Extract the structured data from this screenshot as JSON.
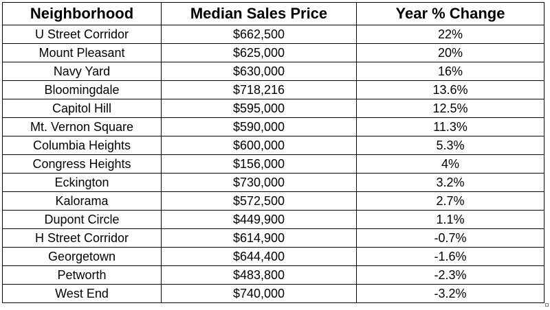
{
  "table": {
    "headers": [
      "Neighborhood",
      "Median Sales Price",
      "Year % Change"
    ],
    "rows": [
      [
        "U Street Corridor",
        "$662,500",
        "22%"
      ],
      [
        "Mount Pleasant",
        "$625,000",
        "20%"
      ],
      [
        "Navy Yard",
        "$630,000",
        "16%"
      ],
      [
        "Bloomingdale",
        "$718,216",
        "13.6%"
      ],
      [
        "Capitol Hill",
        "$595,000",
        "12.5%"
      ],
      [
        "Mt. Vernon Square",
        "$590,000",
        "11.3%"
      ],
      [
        "Columbia Heights",
        "$600,000",
        "5.3%"
      ],
      [
        "Congress Heights",
        "$156,000",
        "4%"
      ],
      [
        "Eckington",
        "$730,000",
        "3.2%"
      ],
      [
        "Kalorama",
        "$572,500",
        "2.7%"
      ],
      [
        "Dupont Circle",
        "$449,900",
        "1.1%"
      ],
      [
        "H Street Corridor",
        "$614,900",
        "-0.7%"
      ],
      [
        "Georgetown",
        "$644,400",
        "-1.6%"
      ],
      [
        "Petworth",
        "$483,800",
        "-2.3%"
      ],
      [
        "West End",
        "$740,000",
        "-3.2%"
      ]
    ]
  }
}
